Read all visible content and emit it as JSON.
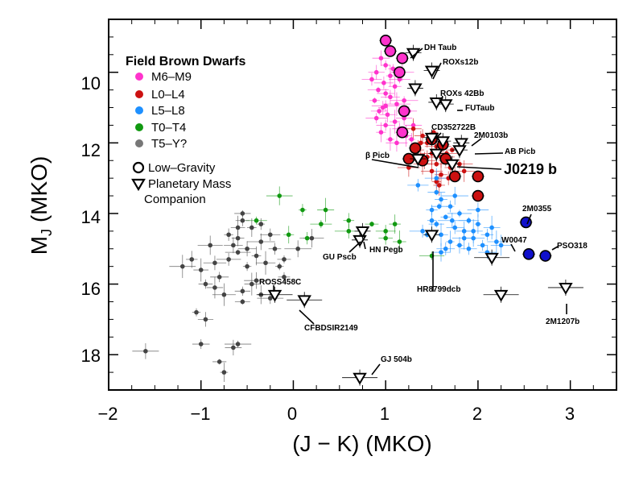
{
  "chart_data": {
    "type": "scatter",
    "xlabel": "(J − K) (MKO)",
    "ylabel_main": "M",
    "ylabel_sub": "J",
    "ylabel_rest": " (MKO)",
    "xlim": [
      -2.0,
      3.5
    ],
    "ylim": [
      19.0,
      8.5
    ],
    "xticks": [
      -2,
      -1,
      0,
      1,
      2,
      3
    ],
    "xtick_labels": [
      "−2",
      "−1",
      "0",
      "1",
      "2",
      "3"
    ],
    "yticks": [
      10,
      12,
      14,
      16,
      18
    ],
    "ytick_labels": [
      "10",
      "12",
      "14",
      "16",
      "18"
    ],
    "legend": {
      "title": "Field Brown Dwarfs",
      "entries": [
        {
          "label": "M6–M9",
          "color": "#ff33cc"
        },
        {
          "label": "L0–L4",
          "color": "#cc1111"
        },
        {
          "label": "L5–L8",
          "color": "#1e90ff"
        },
        {
          "label": "T0–T4",
          "color": "#119911"
        },
        {
          "label": "T5–Y?",
          "color": "#777777"
        }
      ],
      "low_gravity_label": "Low–Gravity",
      "planetary_label_1": "Planetary Mass",
      "planetary_label_2": "Companion"
    },
    "series": [
      {
        "name": "M6–M9 field",
        "color": "#ff33cc",
        "points": [
          [
            0.95,
            9.6
          ],
          [
            1.0,
            9.8
          ],
          [
            0.9,
            10.0
          ],
          [
            1.05,
            10.1
          ],
          [
            0.98,
            10.3
          ],
          [
            1.1,
            10.4
          ],
          [
            0.92,
            10.5
          ],
          [
            1.0,
            10.6
          ],
          [
            1.15,
            10.2
          ],
          [
            1.05,
            10.7
          ],
          [
            0.88,
            10.8
          ],
          [
            1.12,
            10.9
          ],
          [
            0.97,
            11.0
          ],
          [
            1.2,
            10.8
          ],
          [
            1.02,
            11.2
          ],
          [
            0.9,
            11.3
          ],
          [
            1.1,
            11.4
          ],
          [
            1.25,
            11.1
          ],
          [
            1.0,
            11.5
          ],
          [
            0.95,
            11.7
          ],
          [
            1.15,
            11.6
          ],
          [
            1.05,
            11.9
          ],
          [
            1.22,
            11.8
          ],
          [
            1.3,
            11.5
          ],
          [
            0.85,
            10.2
          ],
          [
            1.18,
            10.0
          ],
          [
            1.08,
            9.9
          ],
          [
            0.93,
            11.1
          ],
          [
            1.28,
            11.9
          ],
          [
            1.12,
            12.0
          ],
          [
            1.0,
            10.95
          ],
          [
            1.2,
            11.3
          ]
        ]
      },
      {
        "name": "L0–L4 field",
        "color": "#cc1111",
        "points": [
          [
            1.3,
            11.6
          ],
          [
            1.4,
            11.8
          ],
          [
            1.45,
            12.0
          ],
          [
            1.55,
            12.1
          ],
          [
            1.35,
            12.2
          ],
          [
            1.5,
            12.3
          ],
          [
            1.6,
            12.4
          ],
          [
            1.42,
            12.5
          ],
          [
            1.55,
            12.6
          ],
          [
            1.65,
            12.5
          ],
          [
            1.7,
            12.7
          ],
          [
            1.5,
            12.8
          ],
          [
            1.6,
            12.9
          ],
          [
            1.75,
            12.9
          ],
          [
            1.45,
            12.4
          ],
          [
            1.38,
            12.0
          ],
          [
            1.62,
            12.1
          ],
          [
            1.68,
            13.0
          ],
          [
            1.55,
            13.1
          ],
          [
            1.8,
            12.6
          ],
          [
            1.48,
            11.9
          ],
          [
            1.25,
            12.7
          ],
          [
            1.85,
            12.8
          ],
          [
            1.58,
            13.2
          ],
          [
            1.72,
            12.2
          ],
          [
            1.52,
            11.7
          ],
          [
            1.4,
            12.6
          ],
          [
            1.66,
            12.3
          ]
        ]
      },
      {
        "name": "L5–L8 field",
        "color": "#1e90ff",
        "points": [
          [
            1.55,
            13.4
          ],
          [
            1.6,
            13.6
          ],
          [
            1.7,
            13.8
          ],
          [
            1.5,
            13.9
          ],
          [
            1.8,
            14.0
          ],
          [
            1.65,
            14.1
          ],
          [
            1.9,
            14.2
          ],
          [
            1.55,
            14.3
          ],
          [
            1.75,
            14.4
          ],
          [
            2.0,
            14.3
          ],
          [
            1.85,
            14.5
          ],
          [
            1.6,
            14.6
          ],
          [
            1.95,
            14.7
          ],
          [
            2.1,
            14.6
          ],
          [
            1.7,
            14.8
          ],
          [
            1.45,
            14.6
          ],
          [
            2.05,
            14.9
          ],
          [
            1.8,
            14.9
          ],
          [
            1.9,
            15.0
          ],
          [
            2.2,
            14.8
          ],
          [
            1.65,
            15.0
          ],
          [
            1.5,
            14.2
          ],
          [
            2.0,
            13.9
          ],
          [
            1.75,
            13.5
          ],
          [
            2.15,
            14.4
          ],
          [
            1.4,
            14.5
          ],
          [
            1.6,
            15.1
          ],
          [
            1.85,
            14.7
          ],
          [
            1.95,
            14.5
          ],
          [
            2.25,
            14.9
          ],
          [
            1.58,
            13.8
          ],
          [
            1.72,
            14.2
          ],
          [
            1.35,
            13.2
          ],
          [
            1.55,
            13.0
          ],
          [
            2.1,
            15.1
          ]
        ]
      },
      {
        "name": "T0–T4 field",
        "color": "#119911",
        "points": [
          [
            -0.15,
            13.5
          ],
          [
            0.1,
            13.9
          ],
          [
            0.35,
            13.9
          ],
          [
            -0.4,
            14.2
          ],
          [
            0.3,
            14.3
          ],
          [
            0.6,
            14.2
          ],
          [
            0.85,
            14.3
          ],
          [
            0.6,
            14.5
          ],
          [
            0.15,
            14.7
          ],
          [
            -0.05,
            14.6
          ],
          [
            1.1,
            14.3
          ],
          [
            1.15,
            14.8
          ],
          [
            1.0,
            14.5
          ],
          [
            1.5,
            15.2
          ],
          [
            1.0,
            14.7
          ]
        ]
      },
      {
        "name": "T5–Y? field",
        "color": "#444444",
        "points": [
          [
            -1.6,
            17.9
          ],
          [
            -1.05,
            16.8
          ],
          [
            -1.0,
            17.7
          ],
          [
            -0.95,
            17.0
          ],
          [
            -0.8,
            18.2
          ],
          [
            -0.75,
            18.5
          ],
          [
            -0.65,
            17.8
          ],
          [
            -0.6,
            17.7
          ],
          [
            -0.55,
            16.2
          ],
          [
            -0.55,
            16.5
          ],
          [
            -0.35,
            16.3
          ],
          [
            -0.6,
            15.1
          ],
          [
            -0.8,
            15.8
          ],
          [
            -0.95,
            16.0
          ],
          [
            -0.85,
            15.4
          ],
          [
            -1.1,
            15.3
          ],
          [
            -1.2,
            15.5
          ],
          [
            -1.0,
            15.6
          ],
          [
            -0.7,
            15.3
          ],
          [
            -0.5,
            15.5
          ],
          [
            -0.4,
            15.2
          ],
          [
            -0.3,
            15.4
          ],
          [
            -0.2,
            15.0
          ],
          [
            -0.1,
            15.3
          ],
          [
            0.05,
            15.0
          ],
          [
            0.2,
            14.7
          ],
          [
            -0.6,
            14.7
          ],
          [
            -0.45,
            14.4
          ],
          [
            -0.35,
            14.8
          ],
          [
            -0.55,
            14.2
          ],
          [
            -0.65,
            14.9
          ],
          [
            -0.7,
            14.6
          ],
          [
            -0.9,
            14.9
          ],
          [
            -0.5,
            15.0
          ],
          [
            -0.25,
            14.6
          ],
          [
            -0.15,
            15.5
          ],
          [
            -0.45,
            16.0
          ],
          [
            -0.75,
            16.3
          ],
          [
            -0.85,
            16.1
          ],
          [
            -0.55,
            14.0
          ],
          [
            -0.25,
            16.4
          ],
          [
            -0.1,
            15.8
          ],
          [
            -0.35,
            14.3
          ],
          [
            -0.6,
            14.4
          ],
          [
            -0.4,
            15.9
          ]
        ]
      }
    ],
    "low_gravity": [
      {
        "x": 1.0,
        "y": 9.1,
        "color": "#ff33cc"
      },
      {
        "x": 1.05,
        "y": 9.4,
        "color": "#ff33cc"
      },
      {
        "x": 1.18,
        "y": 9.6,
        "color": "#ff33cc"
      },
      {
        "x": 1.15,
        "y": 10.0,
        "color": "#ff33cc"
      },
      {
        "x": 1.2,
        "y": 11.1,
        "color": "#ff33cc"
      },
      {
        "x": 1.18,
        "y": 11.7,
        "color": "#ff33cc"
      },
      {
        "x": 1.5,
        "y": 11.9,
        "color": "#cc1111"
      },
      {
        "x": 1.32,
        "y": 12.15,
        "color": "#cc1111"
      },
      {
        "x": 1.62,
        "y": 12.05,
        "color": "#cc1111"
      },
      {
        "x": 1.25,
        "y": 12.45,
        "color": "#cc1111"
      },
      {
        "x": 1.4,
        "y": 12.5,
        "color": "#cc1111"
      },
      {
        "x": 1.65,
        "y": 12.45,
        "color": "#cc1111"
      },
      {
        "x": 1.75,
        "y": 12.95,
        "color": "#cc1111"
      },
      {
        "x": 2.0,
        "y": 12.95,
        "color": "#cc1111"
      },
      {
        "x": 2.0,
        "y": 13.5,
        "color": "#cc1111"
      },
      {
        "x": 2.52,
        "y": 14.25,
        "color": "#1111cc"
      },
      {
        "x": 2.55,
        "y": 15.15,
        "color": "#1111cc"
      },
      {
        "x": 2.73,
        "y": 15.2,
        "color": "#1111cc"
      }
    ],
    "companions": [
      {
        "name": "DH Taub",
        "x": 1.3,
        "y": 9.45
      },
      {
        "name": "ROXs12b",
        "x": 1.5,
        "y": 9.95
      },
      {
        "name": "",
        "x": 1.32,
        "y": 10.45
      },
      {
        "name": "ROXs 42Bb",
        "x": 1.55,
        "y": 10.85
      },
      {
        "name": "FUTaub",
        "x": 1.65,
        "y": 10.9
      },
      {
        "name": "CD352722B",
        "x": 1.5,
        "y": 11.85
      },
      {
        "name": "2M0103b",
        "x": 1.82,
        "y": 12.0
      },
      {
        "name": "",
        "x": 1.62,
        "y": 11.95
      },
      {
        "name": "AB Picb",
        "x": 1.8,
        "y": 12.2
      },
      {
        "name": "",
        "x": 1.55,
        "y": 12.3
      },
      {
        "name": "β Picb",
        "x": 1.35,
        "y": 12.45
      },
      {
        "name": "J0219 b",
        "x": 1.72,
        "y": 12.6
      },
      {
        "name": "HR8799dcb",
        "x": 1.5,
        "y": 14.6
      },
      {
        "name": "",
        "x": 2.15,
        "y": 15.25
      },
      {
        "name": "",
        "x": 2.25,
        "y": 16.3
      },
      {
        "name": "2M1207b",
        "x": 2.95,
        "y": 16.1
      },
      {
        "name": "GU Pscb",
        "x": 0.72,
        "y": 14.75
      },
      {
        "name": "HN Pegb",
        "x": 0.75,
        "y": 14.5
      },
      {
        "name": "ROSS458C",
        "x": -0.2,
        "y": 16.3
      },
      {
        "name": "CFBDSIR2149",
        "x": 0.12,
        "y": 16.45
      },
      {
        "name": "GJ 504b",
        "x": 0.72,
        "y": 18.65
      }
    ],
    "annotations": {
      "dh_taub": "DH Taub",
      "roxs12b": "ROXs12b",
      "roxs42bb": "ROXs 42Bb",
      "futaub": "FUTaub",
      "cd352722b": "CD352722B",
      "m0103b": "2M0103b",
      "abpicb": "AB Picb",
      "betapicb": "β Picb",
      "j0219b": "J0219 b",
      "m0355": "2M0355",
      "w0047": "W0047",
      "pso318": "PSO318",
      "hr8799": "HR8799dcb",
      "m1207b": "2M1207b",
      "gupscb": "GU Pscb",
      "hnpegb": "HN Pegb",
      "ross458c": "ROSS458C",
      "cfbdsir": "CFBDSIR2149",
      "gj504b": "GJ 504b"
    }
  }
}
